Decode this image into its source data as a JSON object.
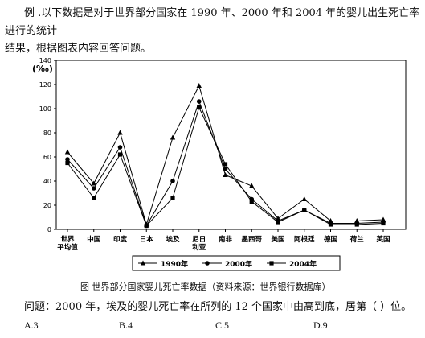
{
  "intro": {
    "line1": "例  .以下数据是对于世界部分国家在 1990 年、2000 年和 2004 年的婴儿出生死亡率进行的统计",
    "line2": "结果，根据图表内容回答问题。"
  },
  "caption": "图  世界部分国家婴儿死亡率数据（资料来源：世界银行数据库）",
  "question": "问题：2000 年，埃及的婴儿死亡率在所列的 12 个国家中由高到底，居第（    ）位。",
  "options": [
    "A.3",
    "B.4",
    "C.5",
    "D.9"
  ],
  "chart_data": {
    "type": "line",
    "unit_label": "(‰)",
    "ylim": [
      0,
      140
    ],
    "yticks": [
      "0",
      "20",
      "40",
      "60",
      "80",
      "100",
      "120",
      "140"
    ],
    "categories": [
      [
        "世界",
        "平均值"
      ],
      [
        "中国"
      ],
      [
        "印度"
      ],
      [
        "日本"
      ],
      [
        "埃及"
      ],
      [
        "尼日",
        "利亚"
      ],
      [
        "南非"
      ],
      [
        "墨西哥"
      ],
      [
        "美国"
      ],
      [
        "阿根廷"
      ],
      [
        "德国"
      ],
      [
        "荷兰"
      ],
      [
        "英国"
      ]
    ],
    "series": [
      {
        "name": "1990年",
        "marker": "triangle",
        "values": [
          64,
          38,
          80,
          4,
          76,
          119,
          45,
          36,
          9,
          25,
          7,
          7,
          8
        ]
      },
      {
        "name": "2000年",
        "marker": "circle",
        "values": [
          58,
          34,
          68,
          3,
          40,
          106,
          50,
          25,
          7,
          16,
          5,
          5,
          6
        ]
      },
      {
        "name": "2004年",
        "marker": "square",
        "values": [
          55,
          26,
          62,
          3,
          26,
          101,
          54,
          23,
          6,
          16,
          4,
          4,
          5
        ]
      }
    ]
  }
}
